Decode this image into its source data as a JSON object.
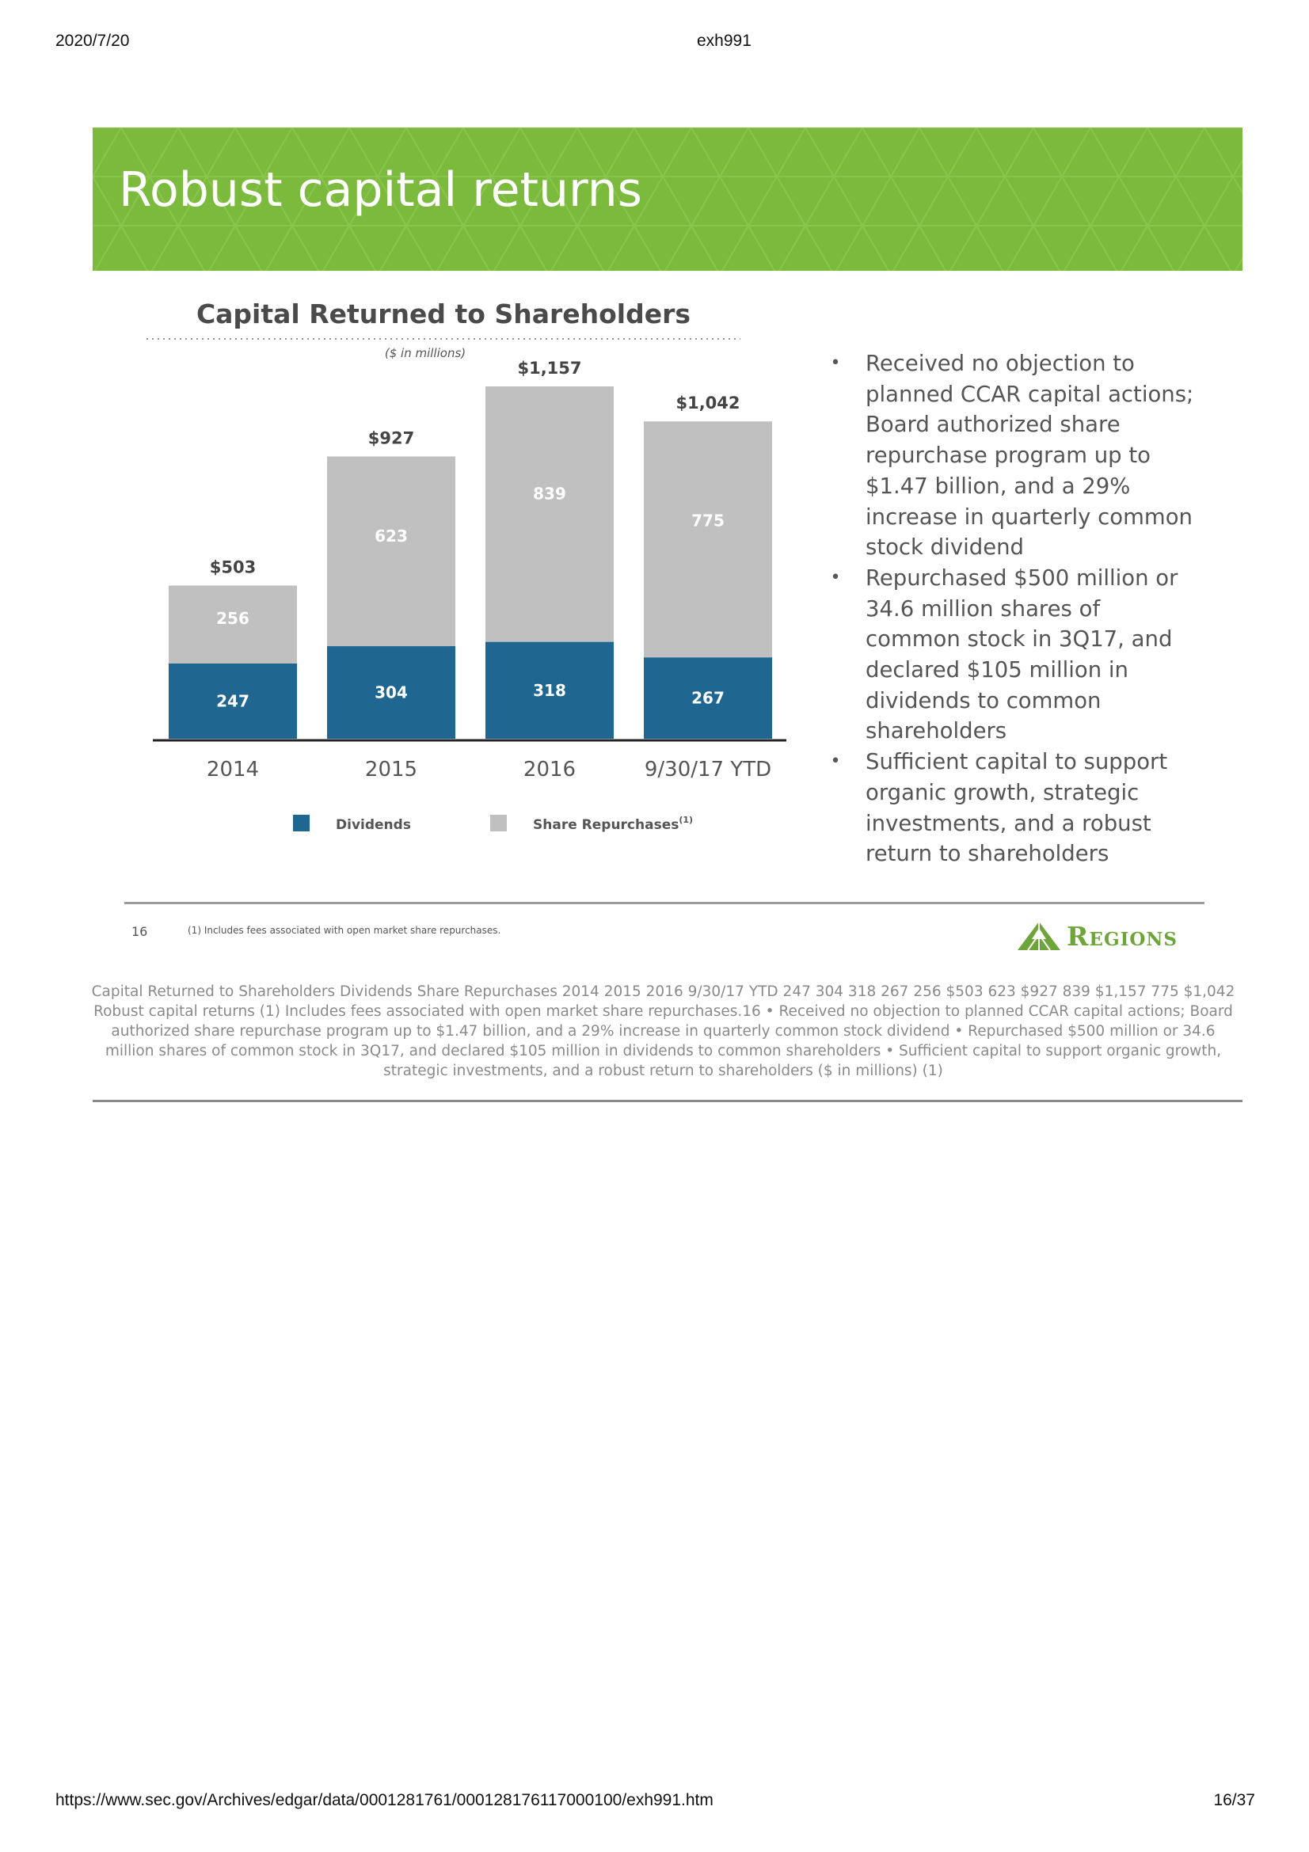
{
  "browser_header": {
    "date": "2020/7/20",
    "title": "exh991"
  },
  "browser_footer": {
    "url": "https://www.sec.gov/Archives/edgar/data/0001281761/000128176117000100/exh991.htm",
    "page": "16/37"
  },
  "slide": {
    "title": "Robust capital returns",
    "banner_color": "#7cba3d",
    "page_number": "16",
    "footnote": "(1)  Includes fees associated with open market share repurchases.",
    "logo_text": "Regions",
    "bullets": [
      "Received no objection to planned CCAR capital actions; Board authorized share repurchase program up to $1.47 billion, and a 29% increase in quarterly common stock dividend",
      "Repurchased $500 million or 34.6 million shares of common stock in 3Q17, and declared $105 million in dividends to common shareholders",
      "Sufficient capital to support organic growth, strategic investments, and a robust return to shareholders"
    ]
  },
  "chart_data": {
    "type": "bar",
    "stacked": true,
    "title": "Capital Returned to Shareholders",
    "subtitle": "($ in millions)",
    "categories": [
      "2014",
      "2015",
      "2016",
      "9/30/17 YTD"
    ],
    "series": [
      {
        "name": "Dividends",
        "values": [
          247,
          304,
          318,
          267
        ],
        "color": "#1f6690"
      },
      {
        "name": "Share Repurchases",
        "values": [
          256,
          623,
          839,
          775
        ],
        "color": "#c0c0c0"
      }
    ],
    "totals": [
      "$503",
      "$927",
      "$1,157",
      "$1,042"
    ],
    "legend": {
      "position": "bottom",
      "dividends_label": "Dividends",
      "repurchases_label": "Share Repurchases",
      "repurchases_superscript": "(1)"
    },
    "ylim": [
      0,
      1157
    ],
    "grid": false
  },
  "ocr_text": "Capital Returned to Shareholders Dividends Share Repurchases 2014 2015 2016 9/30/17 YTD 247 304 318 267 256 $503 623 $927 839 $1,157 775 $1,042 Robust capital returns (1) Includes fees associated with open market share repurchases.16 • Received no objection to planned CCAR capital actions; Board authorized share repurchase program up to $1.47 billion, and a 29% increase in quarterly common stock dividend  • Repurchased $500 million or 34.6 million shares of common stock in 3Q17, and declared $105 million in dividends to common shareholders  • Sufficient capital to support organic growth, strategic investments, and a robust return to shareholders ($ in millions) (1)"
}
